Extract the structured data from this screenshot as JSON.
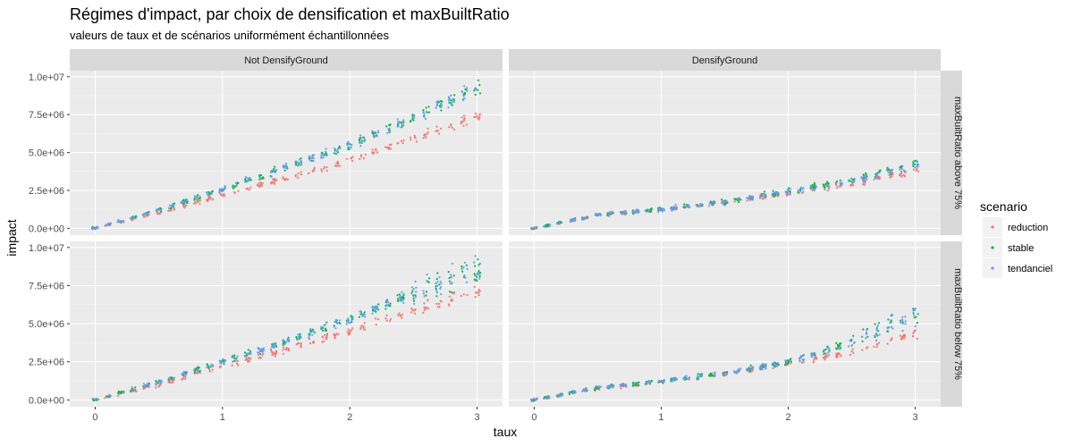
{
  "chart_data": {
    "type": "scatter",
    "title": "Régimes d'impact, par choix de densification et maxBuiltRatio",
    "subtitle": "valeurs de taux et de scénarios uniformément échantillonnées",
    "xlabel": "taux",
    "ylabel": "impact",
    "xlim": [
      -0.2,
      3.2
    ],
    "ylim": [
      -450000,
      10400000
    ],
    "x_ticks": [
      0,
      1,
      2,
      3
    ],
    "x_tick_labels": [
      "0",
      "1",
      "2",
      "3"
    ],
    "y_ticks": [
      0,
      2500000,
      5000000,
      7500000,
      10000000
    ],
    "y_tick_labels": [
      "0.0e+00",
      "2.5e+06",
      "5.0e+06",
      "7.5e+06",
      "1.0e+07"
    ],
    "facet_columns": [
      "Not DensifyGround",
      "DensifyGround"
    ],
    "facet_rows": [
      "maxBuiltRatio above 75%",
      "maxBuiltRatio below 75%"
    ],
    "legend": {
      "title": "scenario",
      "position": "right",
      "entries": [
        {
          "name": "reduction",
          "color": "#F8766D"
        },
        {
          "name": "stable",
          "color": "#00BA38"
        },
        {
          "name": "tendanciel",
          "color": "#619CFF"
        }
      ]
    },
    "grid": true,
    "panels": [
      {
        "column": "Not DensifyGround",
        "row": "maxBuiltRatio above 75%",
        "series": [
          {
            "name": "reduction",
            "x": [
              0,
              0.5,
              1.0,
              1.5,
              2.0,
              2.5,
              3.0
            ],
            "y": [
              0,
              1000000,
              2200000,
              3300000,
              4500000,
              5900000,
              7400000
            ]
          },
          {
            "name": "stable",
            "x": [
              0,
              0.5,
              1.0,
              1.5,
              2.0,
              2.5,
              3.0
            ],
            "y": [
              0,
              1200000,
              2600000,
              4000000,
              5500000,
              7300000,
              9300000
            ]
          },
          {
            "name": "tendanciel",
            "x": [
              0,
              0.5,
              1.0,
              1.5,
              2.0,
              2.5,
              3.0
            ],
            "y": [
              0,
              1200000,
              2600000,
              4000000,
              5500000,
              7300000,
              9300000
            ]
          }
        ]
      },
      {
        "column": "DensifyGround",
        "row": "maxBuiltRatio above 75%",
        "series": [
          {
            "name": "reduction",
            "x": [
              0,
              0.5,
              1.0,
              1.5,
              2.0,
              2.5,
              3.0
            ],
            "y": [
              0,
              900000,
              1200000,
              1700000,
              2300000,
              2900000,
              3800000
            ]
          },
          {
            "name": "stable",
            "x": [
              0,
              0.5,
              1.0,
              1.5,
              2.0,
              2.5,
              3.0
            ],
            "y": [
              0,
              900000,
              1250000,
              1750000,
              2450000,
              3200000,
              4300000
            ]
          },
          {
            "name": "tendanciel",
            "x": [
              0,
              0.5,
              1.0,
              1.5,
              2.0,
              2.5,
              3.0
            ],
            "y": [
              0,
              900000,
              1250000,
              1750000,
              2400000,
              3100000,
              4200000
            ]
          }
        ]
      },
      {
        "column": "Not DensifyGround",
        "row": "maxBuiltRatio below 75%",
        "series": [
          {
            "name": "reduction",
            "x": [
              0,
              0.5,
              1.0,
              1.5,
              2.0,
              2.5,
              3.0
            ],
            "y": [
              0,
              1000000,
              2200000,
              3300000,
              4500000,
              5900000,
              7200000
            ]
          },
          {
            "name": "stable",
            "x": [
              0,
              0.5,
              1.0,
              1.5,
              2.0,
              2.5,
              3.0
            ],
            "y": [
              0,
              1200000,
              2500000,
              3800000,
              5300000,
              7000000,
              8500000
            ]
          },
          {
            "name": "tendanciel",
            "x": [
              0,
              0.5,
              1.0,
              1.5,
              2.0,
              2.5,
              3.0
            ],
            "y": [
              0,
              1200000,
              2500000,
              3800000,
              5300000,
              7000000,
              8700000
            ]
          }
        ]
      },
      {
        "column": "DensifyGround",
        "row": "maxBuiltRatio below 75%",
        "series": [
          {
            "name": "reduction",
            "x": [
              0,
              0.5,
              1.0,
              1.5,
              2.0,
              2.5,
              3.0
            ],
            "y": [
              0,
              750000,
              1200000,
              1700000,
              2400000,
              3100000,
              4300000
            ]
          },
          {
            "name": "stable",
            "x": [
              0,
              0.5,
              1.0,
              1.5,
              2.0,
              2.5,
              3.0
            ],
            "y": [
              0,
              800000,
              1250000,
              1750000,
              2500000,
              3800000,
              5700000
            ]
          },
          {
            "name": "tendanciel",
            "x": [
              0,
              0.5,
              1.0,
              1.5,
              2.0,
              2.5,
              3.0
            ],
            "y": [
              0,
              800000,
              1250000,
              1750000,
              2500000,
              3700000,
              5600000
            ]
          }
        ]
      }
    ]
  }
}
